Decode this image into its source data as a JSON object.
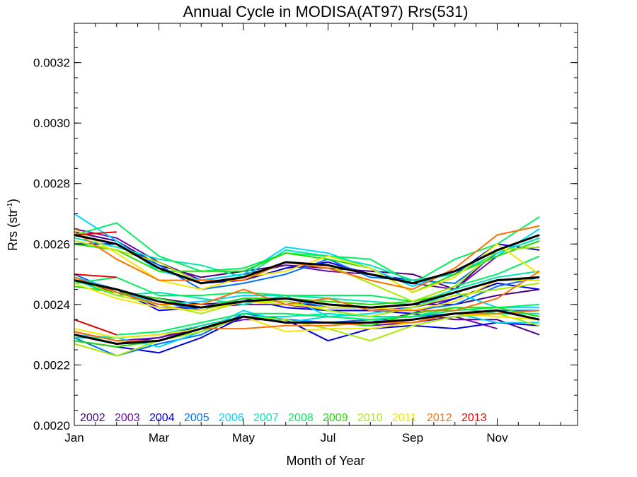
{
  "chart_data": {
    "type": "line",
    "title": "Annual Cycle in MODISA(AT97) Rrs(531)",
    "xlabel": "Month of Year",
    "ylabel_main": "Rrs (str",
    "ylabel_sup": "-1",
    "ylabel_close": ")",
    "xlim": [
      1,
      12.9
    ],
    "ylim": [
      0.002,
      0.00333
    ],
    "x_ticks": [
      {
        "value": 1,
        "label": "Jan"
      },
      {
        "value": 3,
        "label": "Mar"
      },
      {
        "value": 5,
        "label": "May"
      },
      {
        "value": 7,
        "label": "Jul"
      },
      {
        "value": 9,
        "label": "Sep"
      },
      {
        "value": 11,
        "label": "Nov"
      }
    ],
    "y_ticks": [
      {
        "value": 0.002,
        "label": "0.0020"
      },
      {
        "value": 0.0022,
        "label": "0.0022"
      },
      {
        "value": 0.0024,
        "label": "0.0024"
      },
      {
        "value": 0.0026,
        "label": "0.0026"
      },
      {
        "value": 0.0028,
        "label": "0.0028"
      },
      {
        "value": 0.003,
        "label": "0.0030"
      },
      {
        "value": 0.0032,
        "label": "0.0032"
      }
    ],
    "x": [
      1,
      2,
      3,
      4,
      5,
      6,
      7,
      8,
      9,
      10,
      11,
      12
    ],
    "legend_position": "bottom-left",
    "years": [
      {
        "label": "2002",
        "color": "#4b0082"
      },
      {
        "label": "2003",
        "color": "#6a0dad"
      },
      {
        "label": "2004",
        "color": "#0000e0"
      },
      {
        "label": "2005",
        "color": "#0070ff"
      },
      {
        "label": "2006",
        "color": "#00d8ff"
      },
      {
        "label": "2007",
        "color": "#00e8b0"
      },
      {
        "label": "2008",
        "color": "#00f060"
      },
      {
        "label": "2009",
        "color": "#20e000"
      },
      {
        "label": "2010",
        "color": "#a8ec00"
      },
      {
        "label": "2011",
        "color": "#f0e800"
      },
      {
        "label": "2012",
        "color": "#ff7000"
      },
      {
        "label": "2013",
        "color": "#ee0000"
      }
    ],
    "series": [
      {
        "color": "#4b0082",
        "values": [
          0.00264,
          0.00261,
          0.00253,
          0.00249,
          0.00251,
          0.00253,
          0.00252,
          0.00251,
          0.0025,
          0.00245,
          0.00258,
          0.00259
        ]
      },
      {
        "color": "#4b0082",
        "values": [
          0.00248,
          0.00244,
          0.00242,
          0.0024,
          0.00241,
          0.00241,
          0.00239,
          0.00239,
          0.0024,
          0.0024,
          0.00243,
          0.00245
        ]
      },
      {
        "color": "#4b0082",
        "values": [
          0.0023,
          0.00227,
          0.00229,
          0.00233,
          0.00236,
          0.00235,
          0.00234,
          0.00234,
          0.00237,
          0.00235,
          0.00235,
          0.0023
        ]
      },
      {
        "color": "#6a0dad",
        "values": [
          0.00265,
          0.00262,
          0.00254,
          0.00248,
          0.0025,
          0.00253,
          0.00251,
          0.0025,
          0.00247,
          0.00245,
          0.00256,
          null
        ]
      },
      {
        "color": "#6a0dad",
        "values": [
          0.00249,
          0.00245,
          0.00239,
          0.00239,
          0.0024,
          0.0024,
          0.00238,
          0.00238,
          0.00239,
          0.00242,
          0.00247,
          null
        ]
      },
      {
        "color": "#6a0dad",
        "values": [
          0.00231,
          0.00228,
          0.00229,
          0.00232,
          0.00235,
          0.00235,
          0.00234,
          0.00233,
          0.00234,
          0.00236,
          0.00232,
          null
        ]
      },
      {
        "color": "#0000e0",
        "values": [
          0.0026,
          0.0026,
          0.00252,
          0.00247,
          0.00248,
          0.00252,
          0.00254,
          0.0025,
          0.00248,
          0.0025,
          0.0026,
          0.00258
        ]
      },
      {
        "color": "#0000e0",
        "values": [
          0.00248,
          0.00245,
          0.00238,
          0.00239,
          0.00242,
          0.00239,
          0.00238,
          0.00238,
          0.00237,
          0.00242,
          0.00247,
          0.00245
        ]
      },
      {
        "color": "#0000e0",
        "values": [
          0.00228,
          0.00226,
          0.00224,
          0.00229,
          0.00236,
          0.00235,
          0.00228,
          0.00232,
          0.00233,
          0.00232,
          0.00234,
          0.00233
        ]
      },
      {
        "color": "#0070ff",
        "values": [
          0.00263,
          0.0026,
          0.00253,
          0.00245,
          0.00247,
          0.0025,
          0.00255,
          0.00249,
          0.00248,
          0.00247,
          0.00257,
          0.00262
        ]
      },
      {
        "color": "#0070ff",
        "values": [
          0.0025,
          0.00244,
          0.00241,
          0.00238,
          0.00242,
          0.00242,
          0.00239,
          0.00239,
          0.00238,
          0.0024,
          0.00246,
          0.00249
        ]
      },
      {
        "color": "#0070ff",
        "values": [
          0.00229,
          0.00223,
          0.00227,
          0.0023,
          0.00237,
          0.00235,
          0.00234,
          0.00235,
          0.00236,
          0.00237,
          0.00238,
          0.00238
        ]
      },
      {
        "color": "#00d8ff",
        "values": [
          0.0027,
          0.00261,
          0.00251,
          0.00248,
          0.0025,
          0.00259,
          0.00257,
          0.00252,
          0.00246,
          0.00251,
          0.00256,
          0.00265
        ]
      },
      {
        "color": "#00d8ff",
        "values": [
          0.00249,
          0.00245,
          0.0024,
          0.00241,
          0.00243,
          0.00243,
          0.00236,
          0.00237,
          0.00239,
          0.00244,
          0.00239,
          0.00239
        ]
      },
      {
        "color": "#00d8ff",
        "values": [
          0.0023,
          0.00229,
          0.00226,
          0.00231,
          0.00238,
          0.00234,
          0.00236,
          0.00235,
          0.00234,
          0.00237,
          0.00234,
          0.00234
        ]
      },
      {
        "color": "#00e8b0",
        "values": [
          0.00262,
          0.00259,
          0.00255,
          0.00253,
          0.00249,
          0.00258,
          0.00256,
          0.00253,
          0.00248,
          0.0025,
          0.00257,
          0.00262
        ]
      },
      {
        "color": "#00e8b0",
        "values": [
          0.00248,
          0.00243,
          0.00244,
          0.00242,
          0.0024,
          0.00243,
          0.00242,
          0.00241,
          0.0024,
          0.00245,
          0.00249,
          0.00251
        ]
      },
      {
        "color": "#00e8b0",
        "values": [
          0.00229,
          0.00229,
          0.0023,
          0.00233,
          0.00236,
          0.00236,
          0.00237,
          0.00236,
          0.00236,
          0.00239,
          0.00237,
          0.00237
        ]
      },
      {
        "color": "#00f060",
        "values": [
          0.00263,
          0.00267,
          0.00256,
          0.00251,
          0.00252,
          0.00257,
          0.00256,
          0.00255,
          0.00247,
          0.00255,
          0.0026,
          0.00269
        ]
      },
      {
        "color": "#00f060",
        "values": [
          0.00247,
          0.00249,
          0.00243,
          0.00243,
          0.00244,
          0.00243,
          0.00243,
          0.00243,
          0.00241,
          0.00246,
          0.0025,
          0.00256
        ]
      },
      {
        "color": "#00f060",
        "values": [
          0.00235,
          0.0023,
          0.00231,
          0.00234,
          0.00237,
          0.00237,
          0.00236,
          0.00235,
          0.00236,
          0.00238,
          0.00239,
          0.0024
        ]
      },
      {
        "color": "#20e000",
        "values": [
          0.0026,
          0.00258,
          0.00251,
          0.00251,
          0.00251,
          0.00257,
          0.00255,
          0.00252,
          0.00244,
          0.0025,
          0.00256,
          0.00261
        ]
      },
      {
        "color": "#20e000",
        "values": [
          0.00246,
          0.00244,
          0.00242,
          0.00239,
          0.00242,
          0.00242,
          0.00241,
          0.0024,
          0.00241,
          0.00244,
          0.00248,
          0.00248
        ]
      },
      {
        "color": "#20e000",
        "values": [
          0.00228,
          0.00226,
          0.00228,
          0.00232,
          0.00236,
          0.00234,
          0.00234,
          0.00233,
          0.00237,
          0.00239,
          0.00239,
          0.00236
        ]
      },
      {
        "color": "#a8ec00",
        "values": [
          0.00261,
          0.00258,
          0.00254,
          0.00247,
          0.00249,
          0.00254,
          0.00253,
          0.00247,
          0.00241,
          0.00246,
          0.00258,
          0.00259
        ]
      },
      {
        "color": "#a8ec00",
        "values": [
          0.00249,
          0.00243,
          0.0024,
          0.00237,
          0.00241,
          0.00241,
          0.00238,
          0.00236,
          0.00239,
          0.00243,
          0.00245,
          0.00247
        ]
      },
      {
        "color": "#a8ec00",
        "values": [
          0.00227,
          0.00223,
          0.00228,
          0.00231,
          0.00236,
          0.00235,
          0.00232,
          0.00228,
          0.00233,
          0.00236,
          0.00237,
          0.00233
        ]
      },
      {
        "color": "#f0e800",
        "values": [
          0.00265,
          0.00257,
          0.00248,
          0.00245,
          0.00249,
          0.00251,
          0.00256,
          0.00252,
          0.00244,
          0.00249,
          0.0026,
          0.0025
        ]
      },
      {
        "color": "#f0e800",
        "values": [
          0.00247,
          0.00242,
          0.00239,
          0.00238,
          0.00241,
          0.0024,
          0.00239,
          0.00239,
          0.00238,
          0.00241,
          0.00248,
          0.00248
        ]
      },
      {
        "color": "#f0e800",
        "values": [
          0.00232,
          0.00229,
          0.0023,
          0.00232,
          0.00236,
          0.00231,
          0.00232,
          0.00232,
          0.00234,
          0.00237,
          0.00236,
          0.00235
        ]
      },
      {
        "color": "#ff7000",
        "values": [
          0.00264,
          0.00255,
          0.00248,
          0.00248,
          0.00248,
          0.00254,
          0.00252,
          0.00248,
          0.00245,
          0.00252,
          0.00263,
          0.00266
        ]
      },
      {
        "color": "#ff7000",
        "values": [
          0.00249,
          0.00244,
          0.0024,
          0.0024,
          0.00245,
          0.0024,
          0.00242,
          0.00238,
          0.00238,
          0.00238,
          0.00242,
          0.00251
        ]
      },
      {
        "color": "#ff7000",
        "values": [
          0.00231,
          0.00228,
          0.00228,
          0.00232,
          0.00232,
          0.00233,
          0.00233,
          0.00234,
          0.00234,
          0.00237,
          0.00237,
          0.00238
        ]
      },
      {
        "color": "#ee0000",
        "values": [
          0.00263,
          0.00264,
          null,
          null,
          null,
          null,
          null,
          null,
          null,
          null,
          null,
          null
        ]
      },
      {
        "color": "#ee0000",
        "values": [
          0.0025,
          0.00249,
          null,
          null,
          null,
          null,
          null,
          null,
          null,
          null,
          null,
          null
        ]
      },
      {
        "color": "#ee0000",
        "values": [
          0.00235,
          0.0023,
          null,
          null,
          null,
          null,
          null,
          null,
          null,
          null,
          null,
          null
        ]
      },
      {
        "color": "#000000",
        "width": 3,
        "values": [
          0.00263,
          0.0026,
          0.00252,
          0.00247,
          0.00249,
          0.00254,
          0.00253,
          0.0025,
          0.00247,
          0.00251,
          0.00258,
          0.00263
        ]
      },
      {
        "color": "#000000",
        "width": 3,
        "values": [
          0.00248,
          0.00245,
          0.00241,
          0.00239,
          0.00241,
          0.00242,
          0.0024,
          0.00239,
          0.0024,
          0.00244,
          0.00248,
          0.00249
        ]
      },
      {
        "color": "#000000",
        "width": 3,
        "values": [
          0.0023,
          0.00227,
          0.00228,
          0.00232,
          0.00236,
          0.00234,
          0.00234,
          0.00234,
          0.00235,
          0.00237,
          0.00238,
          0.00235
        ]
      }
    ]
  }
}
